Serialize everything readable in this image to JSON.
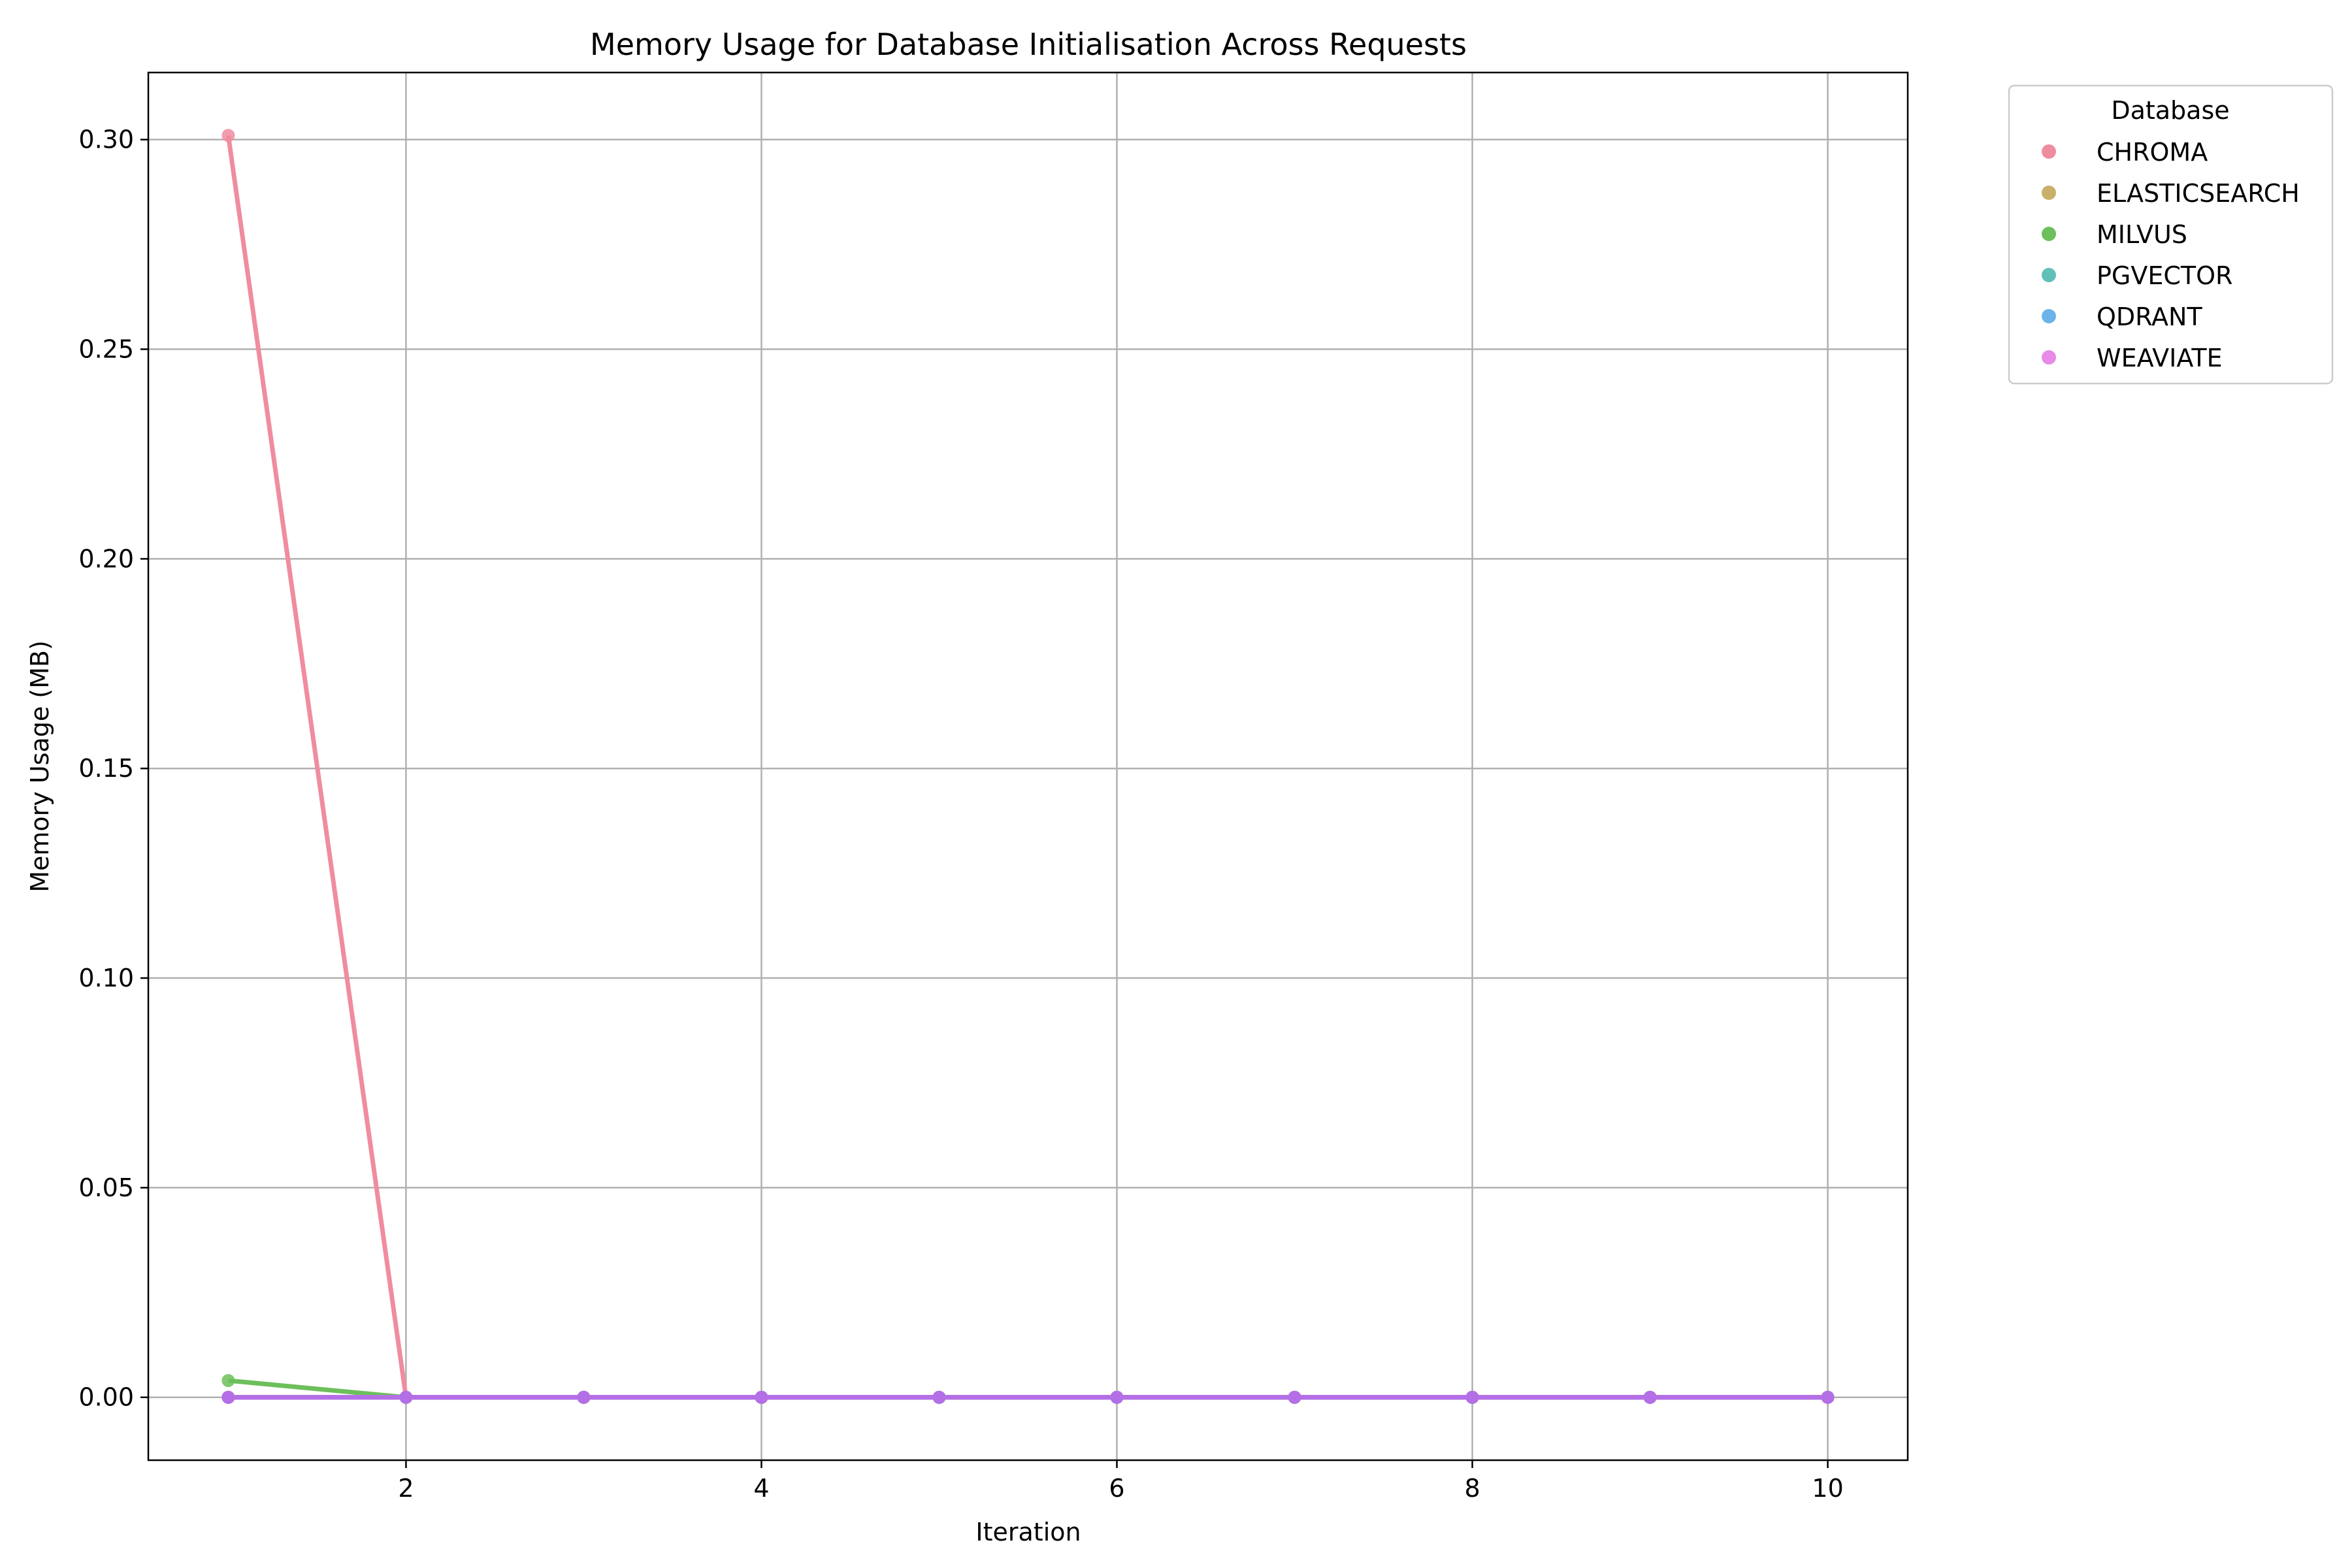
{
  "chart_data": {
    "type": "line",
    "title": "Memory Usage for Database Initialisation Across Requests",
    "xlabel": "Iteration",
    "ylabel": "Memory Usage (MB)",
    "xlim": [
      0.55,
      10.45
    ],
    "ylim": [
      -0.015,
      0.316
    ],
    "xticks": [
      2,
      4,
      6,
      8,
      10
    ],
    "xtick_labels": [
      "2",
      "4",
      "6",
      "8",
      "10"
    ],
    "yticks": [
      0.0,
      0.05,
      0.1,
      0.15,
      0.2,
      0.25,
      0.3
    ],
    "ytick_labels": [
      "0.00",
      "0.05",
      "0.10",
      "0.15",
      "0.20",
      "0.25",
      "0.30"
    ],
    "grid": true,
    "legend": {
      "title": "Database",
      "placement": "outside-top-right"
    },
    "x": [
      1,
      2,
      3,
      4,
      5,
      6,
      7,
      8,
      9,
      10
    ],
    "series": [
      {
        "name": "CHROMA",
        "color": "#f08ca0",
        "values": [
          0.301,
          0,
          0,
          0,
          0,
          0,
          0,
          0,
          0,
          0
        ]
      },
      {
        "name": "ELASTICSEARCH",
        "color": "#c8b06a",
        "values": [
          0,
          0,
          0,
          0,
          0,
          0,
          0,
          0,
          0,
          0
        ]
      },
      {
        "name": "MILVUS",
        "color": "#6cbf5a",
        "values": [
          0.004,
          0,
          0,
          0,
          0,
          0,
          0,
          0,
          0,
          0
        ]
      },
      {
        "name": "PGVECTOR",
        "color": "#60c0b8",
        "values": [
          0,
          0,
          0,
          0,
          0,
          0,
          0,
          0,
          0,
          0
        ]
      },
      {
        "name": "QDRANT",
        "color": "#6cb4e8",
        "values": [
          0,
          0,
          0,
          0,
          0,
          0,
          0,
          0,
          0,
          0
        ]
      },
      {
        "name": "WEAVIATE",
        "color": "#e88ae8",
        "values": [
          0,
          0,
          0,
          0,
          0,
          0,
          0,
          0,
          0,
          0
        ]
      }
    ],
    "overlay_color": "#b46ee6"
  }
}
